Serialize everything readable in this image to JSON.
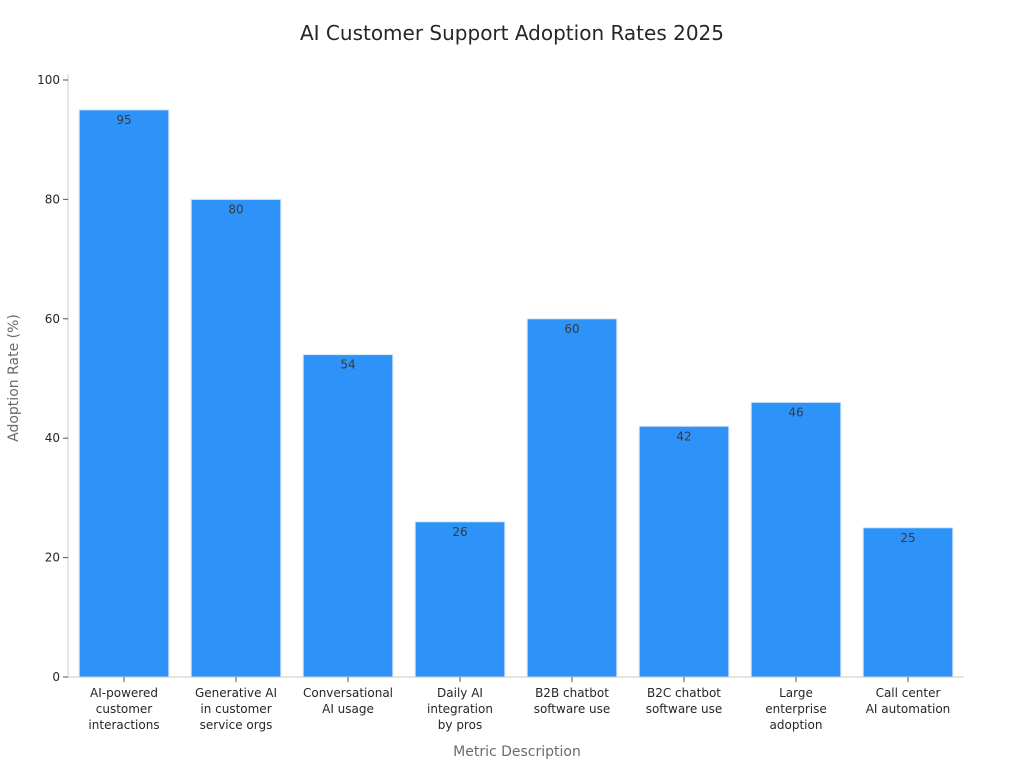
{
  "chart_data": {
    "type": "bar",
    "title": "AI Customer Support Adoption Rates 2025",
    "xlabel": "Metric Description",
    "ylabel": "Adoption Rate (%)",
    "ylim": [
      0,
      100
    ],
    "yticks": [
      0,
      20,
      40,
      60,
      80,
      100
    ],
    "grid": false,
    "bar_color": "#2e93f8",
    "categories": [
      [
        "AI-powered",
        "customer",
        "interactions"
      ],
      [
        "Generative AI",
        "in customer",
        "service orgs"
      ],
      [
        "Conversational",
        "AI usage"
      ],
      [
        "Daily AI",
        "integration",
        "by pros"
      ],
      [
        "B2B chatbot",
        "software use"
      ],
      [
        "B2C chatbot",
        "software use"
      ],
      [
        "Large",
        "enterprise",
        "adoption"
      ],
      [
        "Call center",
        "AI automation"
      ]
    ],
    "values": [
      95,
      80,
      54,
      26,
      60,
      42,
      46,
      25
    ]
  }
}
